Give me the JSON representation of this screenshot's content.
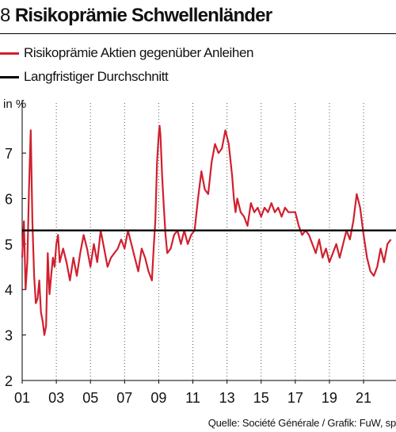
{
  "header": {
    "figure_number": "8",
    "title": "Risikoprämie Schwellenländer"
  },
  "legend": [
    {
      "label": "Risikoprämie Aktien gegenüber Anleihen",
      "color": "#d0202e"
    },
    {
      "label": "Langfristiger Durchschnitt",
      "color": "#000000"
    }
  ],
  "source": "Quelle: Société Générale / Grafik: FuW, sp",
  "chart_data": {
    "type": "line",
    "title": "Risikoprämie Schwellenländer",
    "ylabel": "in %",
    "ylim": [
      2,
      8.1
    ],
    "xlim": [
      2001.0,
      2022.9
    ],
    "yticks": [
      2,
      3,
      4,
      5,
      6,
      7
    ],
    "xticks": [
      {
        "value": 2001,
        "label": "01"
      },
      {
        "value": 2003,
        "label": "03"
      },
      {
        "value": 2005,
        "label": "05"
      },
      {
        "value": 2007,
        "label": "07"
      },
      {
        "value": 2009,
        "label": "09"
      },
      {
        "value": 2011,
        "label": "11"
      },
      {
        "value": 2013,
        "label": "13"
      },
      {
        "value": 2015,
        "label": "15"
      },
      {
        "value": 2017,
        "label": "17"
      },
      {
        "value": 2019,
        "label": "19"
      },
      {
        "value": 2021,
        "label": "21"
      }
    ],
    "grid": "vertical dotted",
    "legend_position": "top-left",
    "series": [
      {
        "name": "Risikoprämie Aktien gegenüber Anleihen",
        "color": "#d0202e",
        "x": [
          2001.0,
          2001.1,
          2001.2,
          2001.3,
          2001.4,
          2001.5,
          2001.6,
          2001.7,
          2001.8,
          2001.9,
          2002.0,
          2002.1,
          2002.2,
          2002.3,
          2002.4,
          2002.5,
          2002.6,
          2002.7,
          2002.8,
          2002.9,
          2003.0,
          2003.1,
          2003.2,
          2003.4,
          2003.6,
          2003.8,
          2004.0,
          2004.2,
          2004.4,
          2004.6,
          2004.8,
          2005.0,
          2005.2,
          2005.4,
          2005.6,
          2005.8,
          2006.0,
          2006.2,
          2006.4,
          2006.6,
          2006.8,
          2007.0,
          2007.2,
          2007.4,
          2007.6,
          2007.8,
          2008.0,
          2008.2,
          2008.4,
          2008.6,
          2008.7,
          2008.8,
          2008.9,
          2009.0,
          2009.05,
          2009.1,
          2009.2,
          2009.3,
          2009.4,
          2009.5,
          2009.7,
          2009.9,
          2010.1,
          2010.3,
          2010.5,
          2010.7,
          2010.9,
          2011.1,
          2011.3,
          2011.5,
          2011.7,
          2011.9,
          2012.1,
          2012.3,
          2012.5,
          2012.7,
          2012.9,
          2013.1,
          2013.3,
          2013.4,
          2013.5,
          2013.6,
          2013.8,
          2014.0,
          2014.2,
          2014.4,
          2014.6,
          2014.8,
          2015.0,
          2015.2,
          2015.4,
          2015.6,
          2015.8,
          2016.0,
          2016.2,
          2016.4,
          2016.6,
          2016.8,
          2017.0,
          2017.2,
          2017.4,
          2017.6,
          2017.8,
          2018.0,
          2018.2,
          2018.4,
          2018.6,
          2018.8,
          2019.0,
          2019.2,
          2019.4,
          2019.6,
          2019.8,
          2020.0,
          2020.2,
          2020.4,
          2020.6,
          2020.8,
          2021.0,
          2021.2,
          2021.4,
          2021.6,
          2021.8,
          2022.0,
          2022.2,
          2022.4,
          2022.6
        ],
        "y": [
          4.7,
          5.5,
          4.0,
          4.6,
          6.2,
          7.5,
          5.5,
          4.3,
          3.7,
          3.8,
          4.2,
          3.5,
          3.3,
          3.0,
          3.2,
          4.8,
          3.9,
          4.3,
          4.7,
          4.5,
          5.0,
          5.2,
          4.6,
          4.9,
          4.6,
          4.2,
          4.7,
          4.3,
          4.8,
          5.2,
          4.9,
          4.5,
          5.0,
          4.6,
          5.3,
          4.9,
          4.5,
          4.7,
          4.8,
          4.9,
          5.1,
          4.9,
          5.3,
          5.0,
          4.7,
          4.4,
          4.9,
          4.7,
          4.4,
          4.2,
          4.9,
          5.5,
          6.8,
          7.4,
          7.6,
          7.4,
          6.5,
          5.8,
          5.2,
          4.8,
          4.9,
          5.2,
          5.3,
          5.0,
          5.3,
          5.0,
          5.2,
          5.3,
          6.0,
          6.6,
          6.2,
          6.1,
          6.8,
          7.2,
          7.0,
          7.1,
          7.5,
          7.2,
          6.5,
          6.0,
          5.7,
          6.0,
          5.7,
          5.6,
          5.4,
          5.9,
          5.7,
          5.8,
          5.6,
          5.8,
          5.7,
          5.9,
          5.7,
          5.8,
          5.6,
          5.8,
          5.7,
          5.7,
          5.7,
          5.4,
          5.2,
          5.3,
          5.2,
          5.0,
          4.8,
          5.1,
          4.7,
          4.9,
          4.6,
          4.8,
          5.0,
          4.7,
          5.0,
          5.3,
          5.1,
          5.5,
          6.1,
          5.8,
          5.2,
          4.7,
          4.4,
          4.3,
          4.5,
          4.9,
          4.6,
          5.0,
          5.1
        ]
      },
      {
        "name": "Langfristiger Durchschnitt",
        "color": "#000000",
        "x": [
          2001.0,
          2022.9
        ],
        "y": [
          5.3,
          5.3
        ]
      }
    ]
  }
}
